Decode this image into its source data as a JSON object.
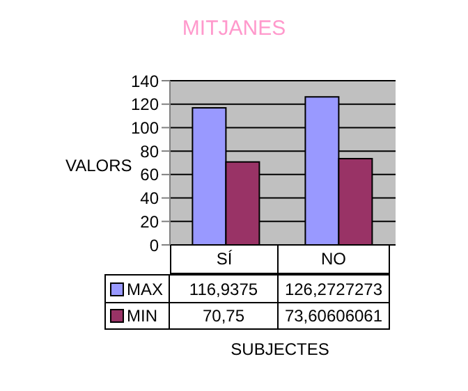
{
  "chart_data": {
    "type": "bar",
    "title": "MITJANES",
    "xlabel": "SUBJECTES",
    "ylabel": "VALORS",
    "categories": [
      "SÍ",
      "NO"
    ],
    "series": [
      {
        "name": "MAX",
        "color": "#9999ff",
        "values": [
          116.9375,
          126.2727273
        ],
        "value_labels": [
          "116,9375",
          "126,2727273"
        ]
      },
      {
        "name": "MIN",
        "color": "#993366",
        "values": [
          70.75,
          73.60606061
        ],
        "value_labels": [
          "70,75",
          "73,60606061"
        ]
      }
    ],
    "ylim": [
      0,
      140
    ],
    "yticks": [
      0,
      20,
      40,
      60,
      80,
      100,
      120,
      140
    ],
    "grid": "y",
    "legend": "bottom"
  }
}
